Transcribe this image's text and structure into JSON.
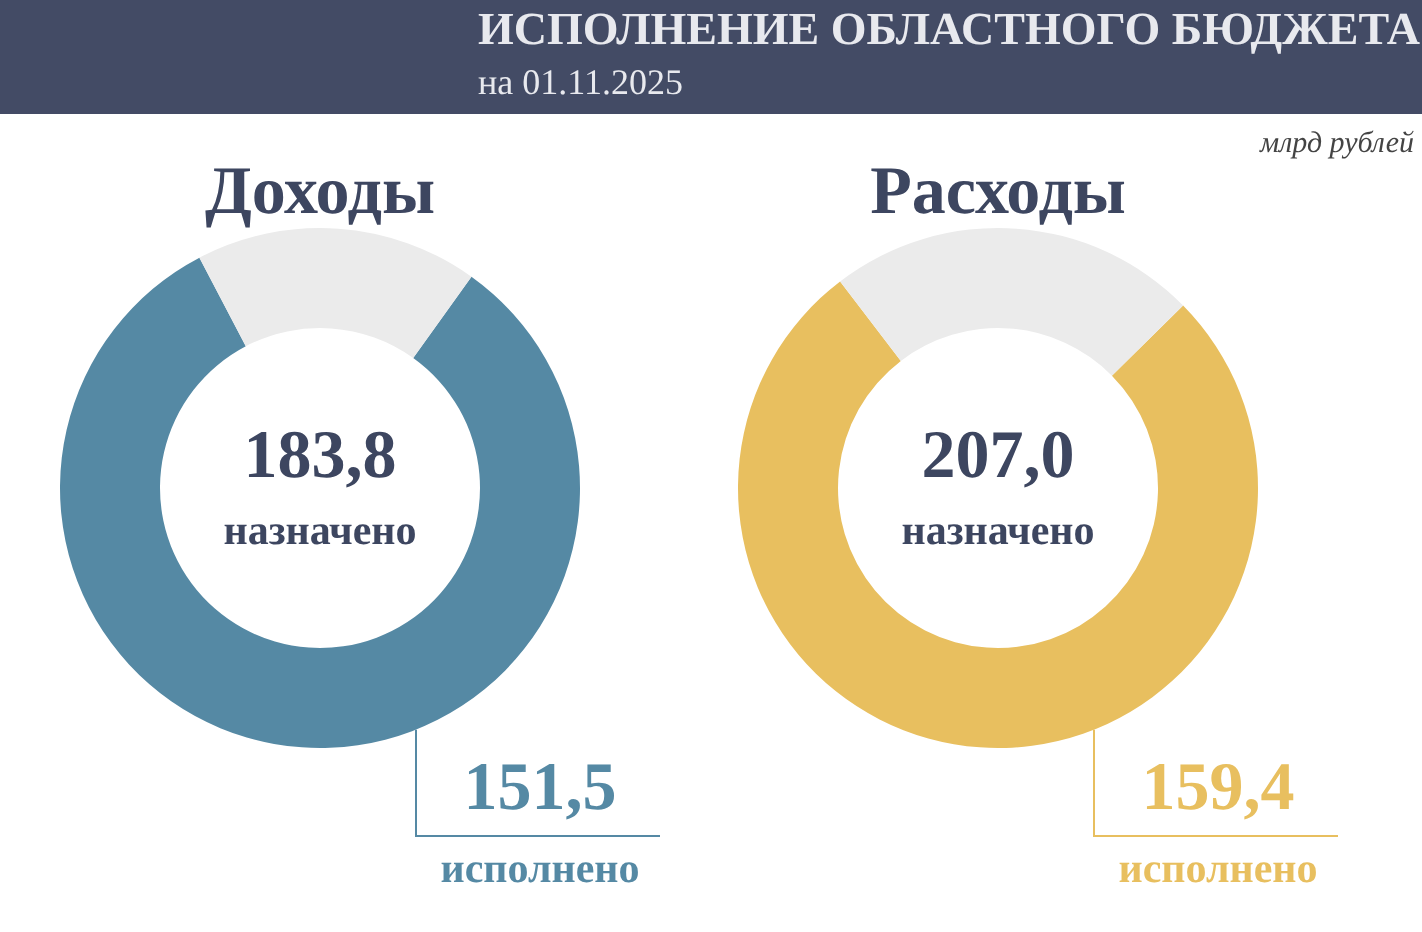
{
  "chart_data": [
    {
      "type": "other",
      "title": "ИСПОЛНЕНИЕ ОБЛАСТНОГО БЮДЖЕТА",
      "subtitle": "на 01.11.2025",
      "annotations": [
        "млрд рублей"
      ]
    },
    {
      "type": "donut",
      "title": "Доходы",
      "categories": [
        "исполнено",
        null
      ],
      "values": [
        151.5,
        32.3
      ],
      "colors": [
        "#5589a4",
        "#ebebeb"
      ],
      "value_labels": [
        "151,5",
        null
      ],
      "annotations": [
        "183,8",
        "назначено"
      ]
    },
    {
      "type": "donut",
      "title": "Расходы",
      "categories": [
        "исполнено",
        null
      ],
      "values": [
        159.4,
        47.6
      ],
      "colors": [
        "#e8bf5f",
        "#ebebeb"
      ],
      "value_labels": [
        "159,4",
        null
      ],
      "annotations": [
        "207,0",
        "назначено"
      ]
    }
  ]
}
